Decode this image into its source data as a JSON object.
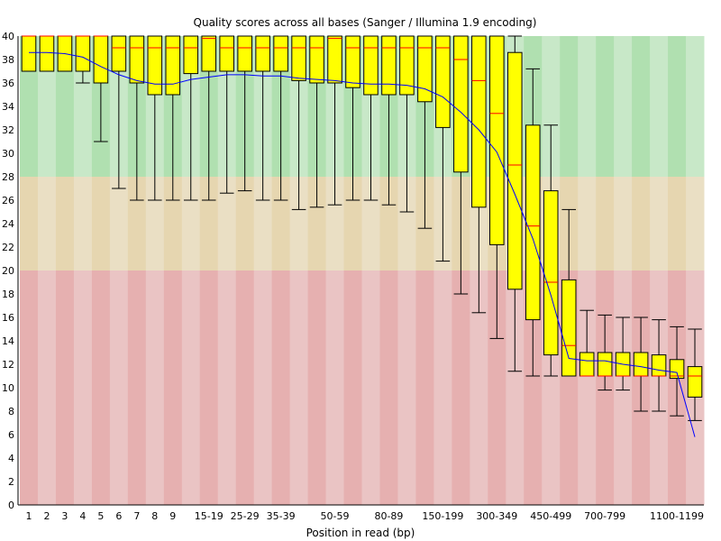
{
  "chart_data": {
    "type": "boxplot",
    "title": "Quality scores across all bases (Sanger / Illumina 1.9 encoding)",
    "xlabel": "Position in read (bp)",
    "ylabel": "",
    "ylim": [
      0,
      40
    ],
    "yticks": [
      0,
      2,
      4,
      6,
      8,
      10,
      12,
      14,
      16,
      18,
      20,
      22,
      24,
      26,
      28,
      30,
      32,
      34,
      36,
      38,
      40
    ],
    "zones": [
      {
        "name": "good",
        "from": 28,
        "to": 40,
        "color_dark": "#b0e0b0",
        "color_light": "#c8e8c8"
      },
      {
        "name": "reasonable",
        "from": 20,
        "to": 28,
        "color_dark": "#e6d6b0",
        "color_light": "#eadfc4"
      },
      {
        "name": "poor",
        "from": 0,
        "to": 20,
        "color_dark": "#e6b0b0",
        "color_light": "#eac4c4"
      }
    ],
    "colors": {
      "box": "#ffff00",
      "median": "#ff0000",
      "mean_line": "#0000ff",
      "whisker": "#000000"
    },
    "categories": [
      {
        "label": "1",
        "show": true
      },
      {
        "label": "2",
        "show": true
      },
      {
        "label": "3",
        "show": true
      },
      {
        "label": "4",
        "show": true
      },
      {
        "label": "5",
        "show": true
      },
      {
        "label": "6",
        "show": true
      },
      {
        "label": "7",
        "show": true
      },
      {
        "label": "8",
        "show": true
      },
      {
        "label": "9",
        "show": true
      },
      {
        "label": "10-14",
        "show": false
      },
      {
        "label": "15-19",
        "show": true
      },
      {
        "label": "20-24",
        "show": false
      },
      {
        "label": "25-29",
        "show": true
      },
      {
        "label": "30-34",
        "show": false
      },
      {
        "label": "35-39",
        "show": true
      },
      {
        "label": "40-44",
        "show": false
      },
      {
        "label": "45-49",
        "show": false
      },
      {
        "label": "50-59",
        "show": true
      },
      {
        "label": "60-69",
        "show": false
      },
      {
        "label": "70-79",
        "show": false
      },
      {
        "label": "80-89",
        "show": true
      },
      {
        "label": "90-99",
        "show": false
      },
      {
        "label": "100-149",
        "show": false
      },
      {
        "label": "150-199",
        "show": true
      },
      {
        "label": "200-249",
        "show": false
      },
      {
        "label": "250-299",
        "show": false
      },
      {
        "label": "300-349",
        "show": true
      },
      {
        "label": "350-399",
        "show": false
      },
      {
        "label": "400-449",
        "show": false
      },
      {
        "label": "450-499",
        "show": true
      },
      {
        "label": "500-599",
        "show": false
      },
      {
        "label": "600-699",
        "show": false
      },
      {
        "label": "700-799",
        "show": true
      },
      {
        "label": "800-899",
        "show": false
      },
      {
        "label": "900-999",
        "show": false
      },
      {
        "label": "1000-1099",
        "show": false
      },
      {
        "label": "1100-1199",
        "show": true
      },
      {
        "label": "1200-1299",
        "show": false
      }
    ],
    "boxes": [
      {
        "low": 37,
        "q1": 37,
        "median": 40,
        "q3": 40,
        "high": 40
      },
      {
        "low": 37,
        "q1": 37,
        "median": 40,
        "q3": 40,
        "high": 40
      },
      {
        "low": 37,
        "q1": 37,
        "median": 40,
        "q3": 40,
        "high": 40
      },
      {
        "low": 36,
        "q1": 37,
        "median": 40,
        "q3": 40,
        "high": 40
      },
      {
        "low": 31,
        "q1": 36,
        "median": 40,
        "q3": 40,
        "high": 40
      },
      {
        "low": 27,
        "q1": 37,
        "median": 39,
        "q3": 40,
        "high": 40
      },
      {
        "low": 26,
        "q1": 36,
        "median": 39,
        "q3": 40,
        "high": 40
      },
      {
        "low": 26,
        "q1": 35,
        "median": 39,
        "q3": 40,
        "high": 40
      },
      {
        "low": 26,
        "q1": 35,
        "median": 39,
        "q3": 40,
        "high": 40
      },
      {
        "low": 26,
        "q1": 36.8,
        "median": 39,
        "q3": 40,
        "high": 40
      },
      {
        "low": 26,
        "q1": 37,
        "median": 39.8,
        "q3": 40,
        "high": 40
      },
      {
        "low": 26.6,
        "q1": 37,
        "median": 39,
        "q3": 40,
        "high": 40
      },
      {
        "low": 26.8,
        "q1": 37,
        "median": 39,
        "q3": 40,
        "high": 40
      },
      {
        "low": 26,
        "q1": 37,
        "median": 39,
        "q3": 40,
        "high": 40
      },
      {
        "low": 26,
        "q1": 37,
        "median": 39,
        "q3": 40,
        "high": 40
      },
      {
        "low": 25.2,
        "q1": 36.2,
        "median": 39,
        "q3": 40,
        "high": 40
      },
      {
        "low": 25.4,
        "q1": 36,
        "median": 39,
        "q3": 40,
        "high": 40
      },
      {
        "low": 25.6,
        "q1": 36,
        "median": 39.8,
        "q3": 40,
        "high": 40
      },
      {
        "low": 26,
        "q1": 35.6,
        "median": 39,
        "q3": 40,
        "high": 40
      },
      {
        "low": 26,
        "q1": 35,
        "median": 39,
        "q3": 40,
        "high": 40
      },
      {
        "low": 25.6,
        "q1": 35,
        "median": 39,
        "q3": 40,
        "high": 40
      },
      {
        "low": 25,
        "q1": 35,
        "median": 39,
        "q3": 40,
        "high": 40
      },
      {
        "low": 23.6,
        "q1": 34.4,
        "median": 39,
        "q3": 40,
        "high": 40
      },
      {
        "low": 20.8,
        "q1": 32.2,
        "median": 39,
        "q3": 40,
        "high": 40
      },
      {
        "low": 18,
        "q1": 28.4,
        "median": 38,
        "q3": 40,
        "high": 40
      },
      {
        "low": 16.4,
        "q1": 25.4,
        "median": 36.2,
        "q3": 40,
        "high": 40
      },
      {
        "low": 14.2,
        "q1": 22.2,
        "median": 33.4,
        "q3": 40,
        "high": 40
      },
      {
        "low": 11.4,
        "q1": 18.4,
        "median": 29,
        "q3": 38.6,
        "high": 40
      },
      {
        "low": 11,
        "q1": 15.8,
        "median": 23.8,
        "q3": 32.4,
        "high": 37.2
      },
      {
        "low": 11,
        "q1": 12.8,
        "median": 19,
        "q3": 26.8,
        "high": 32.4
      },
      {
        "low": 11,
        "q1": 11,
        "median": 13.6,
        "q3": 19.2,
        "high": 25.2
      },
      {
        "low": 11,
        "q1": 11,
        "median": 11,
        "q3": 13,
        "high": 16.6
      },
      {
        "low": 9.8,
        "q1": 11,
        "median": 11,
        "q3": 13,
        "high": 16.2
      },
      {
        "low": 9.8,
        "q1": 11,
        "median": 11,
        "q3": 13,
        "high": 16
      },
      {
        "low": 8,
        "q1": 11,
        "median": 11,
        "q3": 13,
        "high": 16
      },
      {
        "low": 8,
        "q1": 11,
        "median": 11,
        "q3": 12.8,
        "high": 15.8
      },
      {
        "low": 7.6,
        "q1": 10.8,
        "median": 11,
        "q3": 12.4,
        "high": 15.2
      },
      {
        "low": 7.2,
        "q1": 9.2,
        "median": 11,
        "q3": 11.8,
        "high": 15
      }
    ],
    "mean": [
      38.6,
      38.6,
      38.5,
      38.2,
      37.4,
      36.7,
      36.2,
      35.9,
      35.9,
      36.3,
      36.5,
      36.7,
      36.7,
      36.6,
      36.6,
      36.4,
      36.3,
      36.2,
      36.0,
      35.9,
      35.9,
      35.8,
      35.5,
      34.8,
      33.5,
      32.0,
      30.1,
      26.5,
      22.7,
      17.9,
      12.5,
      12.3,
      12.3,
      12.0,
      11.8,
      11.5,
      11.3,
      5.8
    ]
  }
}
